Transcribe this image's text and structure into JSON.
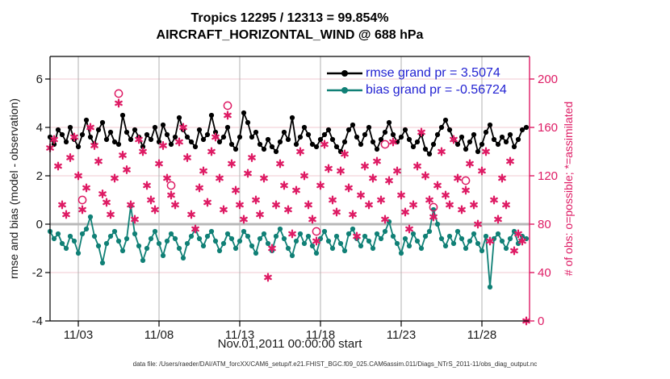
{
  "figure": {
    "title_line1": "Tropics 12295 / 12313 = 99.854%",
    "title_line2": "AIRCRAFT_HORIZONTAL_WIND @ 688 hPa",
    "xlabel": "Nov.01,2011 00:00:00 start",
    "ylabel_left": "rmse and bias (model - observation)",
    "ylabel_right": "# of obs: o=possible; *=assimilated",
    "caption": "data file: /Users/raeder/DAI/ATM_forcXX/CAM6_setup/f.e21.FHIST_BGC.f09_025.CAM6assim.011/Diags_NTrS_2011-11/obs_diag_output.nc",
    "legend": [
      {
        "label": "rmse grand pr = 3.5074",
        "series": "rmse",
        "color": "#000000"
      },
      {
        "label": "bias grand pr = -0.56724",
        "series": "bias",
        "color": "#108076"
      }
    ],
    "colors": {
      "rmse_line": "#000000",
      "bias_line": "#108076",
      "counts_marker": "#de1b64",
      "right_axis": "#de1b64",
      "legend_text": "#2222d2",
      "zero_line": "#b8b8b8",
      "v_gridline": "#b0b0b0",
      "h_gridline": "#f0c8d2"
    }
  },
  "chart_data": {
    "type": "line",
    "title": "Tropics 12295 / 12313 = 99.854%",
    "subtitle": "AIRCRAFT_HORIZONTAL_WIND @ 688 hPa",
    "xlabel": "Nov.01,2011 00:00:00 start",
    "ylabel_left": "rmse and bias (model - observation)",
    "ylabel_right": "# of obs: o=possible; *=assimilated",
    "rmse_grand": 3.5074,
    "bias_grand": -0.56724,
    "n_possible_total": 12313,
    "n_assimilated_total": 12295,
    "x_start": "2011-11-01 06:00",
    "x_step_hours": 6,
    "x_ticks": [
      {
        "day": 3,
        "label": "11/03"
      },
      {
        "day": 8,
        "label": "11/08"
      },
      {
        "day": 13,
        "label": "11/13"
      },
      {
        "day": 18,
        "label": "11/18"
      },
      {
        "day": 23,
        "label": "11/23"
      },
      {
        "day": 28,
        "label": "11/28"
      }
    ],
    "ylim_left": [
      -4,
      6
    ],
    "yticks_left": [
      6,
      4,
      2,
      0,
      -2,
      -4
    ],
    "ylim_right": [
      0,
      200
    ],
    "yticks_right": [
      200,
      160,
      120,
      80,
      40,
      0
    ],
    "grid": true,
    "legend_position": "top-right-inside",
    "series": [
      {
        "name": "rmse",
        "axis": "left",
        "marker": "dot",
        "color": "#000000",
        "values": [
          3.6,
          3.3,
          3.9,
          3.7,
          3.4,
          4.0,
          3.5,
          3.2,
          3.7,
          4.3,
          3.6,
          3.3,
          3.9,
          4.2,
          3.5,
          3.8,
          3.4,
          3.3,
          4.5,
          3.8,
          3.5,
          3.9,
          3.6,
          3.2,
          3.7,
          3.5,
          4.0,
          3.4,
          4.1,
          3.7,
          3.3,
          3.6,
          4.4,
          3.9,
          3.6,
          3.4,
          3.2,
          3.9,
          3.5,
          3.7,
          4.5,
          3.8,
          3.4,
          3.6,
          4.0,
          3.3,
          3.1,
          3.6,
          4.6,
          4.2,
          3.6,
          3.8,
          3.3,
          3.1,
          3.5,
          3.2,
          3.0,
          3.4,
          3.8,
          3.5,
          4.4,
          3.3,
          3.6,
          4.0,
          3.7,
          3.3,
          3.2,
          3.5,
          3.7,
          3.9,
          3.5,
          3.2,
          3.0,
          3.4,
          3.9,
          4.1,
          3.6,
          3.3,
          3.7,
          4.0,
          3.4,
          3.1,
          3.5,
          3.8,
          4.2,
          3.7,
          3.4,
          3.6,
          3.9,
          3.5,
          3.2,
          3.4,
          3.7,
          3.1,
          2.9,
          3.3,
          3.7,
          4.0,
          4.3,
          3.9,
          3.5,
          3.3,
          3.6,
          3.1,
          3.4,
          3.7,
          3.0,
          3.3,
          3.8,
          4.1,
          3.5,
          3.3,
          3.6,
          3.4,
          3.7,
          3.2,
          3.5,
          3.9,
          4.0
        ]
      },
      {
        "name": "bias",
        "axis": "left",
        "marker": "dot",
        "color": "#108076",
        "values": [
          -0.3,
          -0.6,
          -0.4,
          -0.8,
          -1.0,
          -0.5,
          -0.7,
          -1.2,
          -0.4,
          -0.2,
          0.3,
          -0.5,
          -0.9,
          -1.6,
          -0.8,
          -0.5,
          -0.3,
          -0.7,
          -1.1,
          -0.6,
          0.75,
          -0.4,
          -0.9,
          -1.5,
          -1.0,
          -0.6,
          -0.3,
          -0.8,
          -1.3,
          -0.7,
          -0.4,
          -0.6,
          -1.0,
          -1.4,
          -0.8,
          -0.5,
          -0.2,
          -0.6,
          -0.9,
          -0.5,
          -0.3,
          -0.7,
          -1.1,
          -0.8,
          -0.4,
          -0.6,
          -1.0,
          -0.7,
          -0.3,
          -0.5,
          -0.9,
          -1.2,
          -0.6,
          -0.4,
          -0.8,
          -1.1,
          -0.5,
          -0.2,
          -0.6,
          -1.0,
          -1.3,
          -0.7,
          -0.4,
          -0.8,
          -0.5,
          -0.9,
          -1.2,
          -0.6,
          -0.3,
          -0.7,
          -1.0,
          -0.5,
          -0.8,
          -1.1,
          -0.4,
          -0.2,
          -0.6,
          -0.9,
          -0.5,
          -0.7,
          -1.0,
          -0.4,
          -0.6,
          -0.3,
          0.1,
          -0.5,
          -0.8,
          -1.2,
          -0.6,
          -0.9,
          -0.4,
          -0.7,
          -1.0,
          -0.5,
          -0.3,
          0.6,
          0.0,
          -0.6,
          -0.9,
          -0.5,
          -0.8,
          -0.3,
          -0.6,
          -1.0,
          -0.7,
          -0.4,
          -0.8,
          -1.1,
          -0.5,
          -2.6,
          -0.6,
          -0.4,
          -0.7,
          -1.0,
          -0.6,
          -0.3,
          -0.8,
          -0.5,
          -0.6
        ]
      },
      {
        "name": "N assimilated",
        "axis": "right",
        "marker": "asterisk",
        "color": "#de1b64",
        "values": [
          143,
          150,
          128,
          96,
          88,
          135,
          152,
          120,
          92,
          110,
          160,
          145,
          132,
          105,
          98,
          88,
          118,
          180,
          137,
          125,
          96,
          84,
          150,
          140,
          112,
          100,
          92,
          130,
          145,
          118,
          104,
          96,
          148,
          160,
          135,
          88,
          76,
          110,
          124,
          98,
          140,
          152,
          118,
          92,
          170,
          130,
          108,
          96,
          84,
          122,
          135,
          100,
          88,
          118,
          36,
          60,
          96,
          130,
          112,
          92,
          72,
          108,
          140,
          120,
          96,
          84,
          66,
          112,
          146,
          126,
          100,
          90,
          124,
          138,
          110,
          88,
          70,
          104,
          128,
          96,
          118,
          132,
          100,
          84,
          116,
          148,
          124,
          104,
          90,
          76,
          96,
          128,
          156,
          120,
          100,
          86,
          112,
          140,
          104,
          96,
          150,
          118,
          92,
          108,
          130,
          96,
          80,
          124,
          140,
          66,
          100,
          84,
          118,
          96,
          132,
          58,
          72,
          66,
          0
        ]
      },
      {
        "name": "N possible",
        "axis": "right",
        "marker": "open-circle",
        "color": "#de1b64",
        "note": "shown only where it separates visibly from N assimilated",
        "points": [
          [
            8,
            100
          ],
          [
            17,
            188
          ],
          [
            30,
            112
          ],
          [
            44,
            178
          ],
          [
            66,
            74
          ],
          [
            83,
            146
          ],
          [
            95,
            94
          ],
          [
            103,
            116
          ]
        ]
      }
    ]
  }
}
